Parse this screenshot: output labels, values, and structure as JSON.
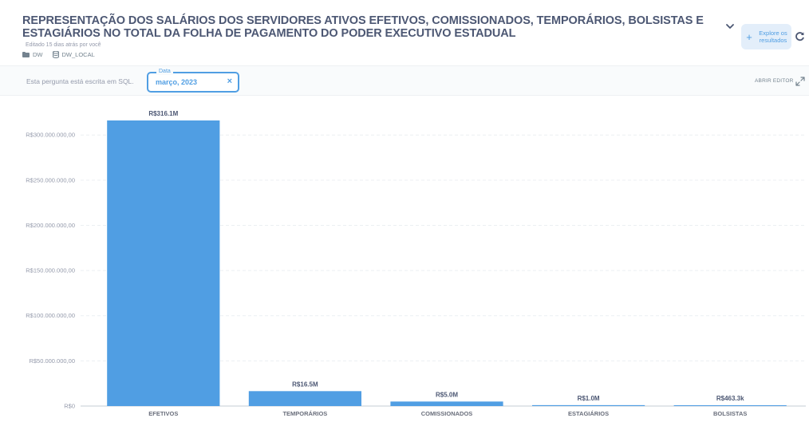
{
  "header": {
    "title": "REPRESENTAÇÃO DOS SALÁRIOS DOS SERVIDORES ATIVOS EFETIVOS, COMISSIONADOS, TEMPORÁRIOS, BOLSISTAS E ESTAGIÁRIOS NO TOTAL DA FOLHA DE PAGAMENTO DO PODER EXECUTIVO ESTADUAL",
    "edited": "Editado 15 dias atrás por você",
    "collection": "DW",
    "database": "DW_LOCAL",
    "explore_label": "Explore os resultados"
  },
  "toolbar": {
    "sql_note": "Esta pergunta está escrita em SQL.",
    "filter_label": "Data",
    "filter_value": "março, 2023",
    "filter_clear": "×",
    "open_editor": "ABRIR EDITOR"
  },
  "icons": {
    "collection": "folder-icon",
    "database": "database-icon",
    "toggle": "chevron-down-icon",
    "explore": "plus-icon",
    "refresh": "refresh-icon",
    "editor": "expand-icon"
  },
  "colors": {
    "accent": "#509ee3",
    "bar": "#509ee3"
  },
  "chart_data": {
    "type": "bar",
    "categories": [
      "EFETIVOS",
      "TEMPORÁRIOS",
      "COMISSIONADOS",
      "ESTAGIÁRIOS",
      "BOLSISTAS"
    ],
    "values": [
      316100000,
      16500000,
      5000000,
      1000000,
      463300
    ],
    "data_labels": [
      "R$316.1M",
      "R$16.5M",
      "R$5.0M",
      "R$1.0M",
      "R$463.3k"
    ],
    "y_ticks": [
      {
        "value": 0,
        "label": "R$0"
      },
      {
        "value": 50000000,
        "label": "R$50.000.000,00"
      },
      {
        "value": 100000000,
        "label": "R$100.000.000,00"
      },
      {
        "value": 150000000,
        "label": "R$150.000.000,00"
      },
      {
        "value": 200000000,
        "label": "R$200.000.000,00"
      },
      {
        "value": 250000000,
        "label": "R$250.000.000,00"
      },
      {
        "value": 300000000,
        "label": "R$300.000.000,00"
      }
    ],
    "ylim": [
      0,
      330000000
    ],
    "title": "",
    "xlabel": "",
    "ylabel": "",
    "grid": true,
    "legend": "none"
  }
}
